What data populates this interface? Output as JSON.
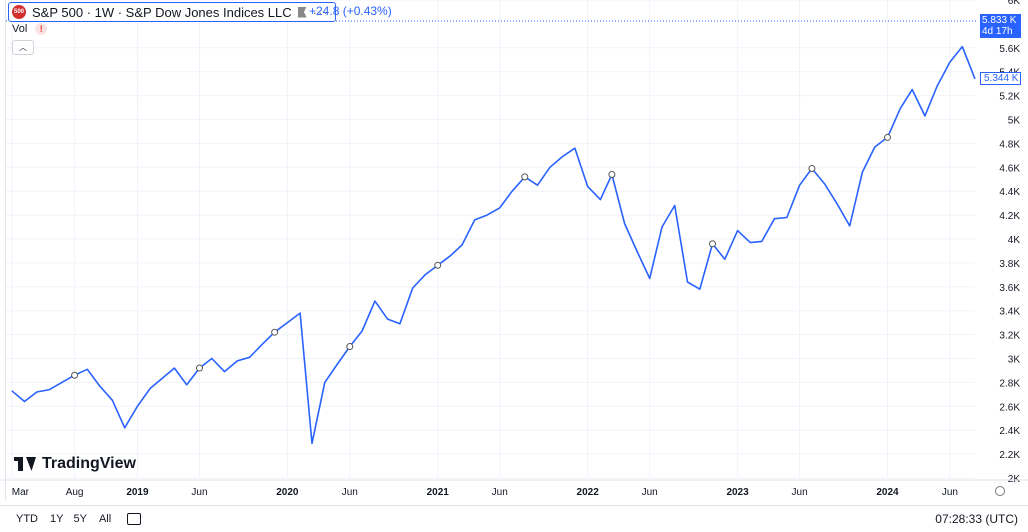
{
  "legend": {
    "logo_text": "500",
    "title": "S&P 500 · 1W · S&P Dow Jones Indices LLC",
    "change": "+24.8 (+0.43%)",
    "vol_label": "Vol",
    "warn_symbol": "!"
  },
  "price_tag": {
    "price": "5.833 K",
    "countdown": "4d 17h"
  },
  "last_tag": "5.344 K",
  "watermark": "TradingView",
  "ranges": [
    "YTD",
    "1Y",
    "5Y",
    "All"
  ],
  "clock": "07:28:33 (UTC)",
  "colors": {
    "line": "#2962ff",
    "grid": "#f0f3fa",
    "price_tag": "#2962ff"
  },
  "chart_data": {
    "type": "line",
    "x_labels": [
      "Mar",
      "Aug",
      "2019",
      "Jun",
      "2020",
      "Jun",
      "2021",
      "Jun",
      "2022",
      "Jun",
      "2023",
      "Jun",
      "2024",
      "Jun"
    ],
    "y_ticks": [
      "2K",
      "2.2K",
      "2.4K",
      "2.6K",
      "2.8K",
      "3K",
      "3.2K",
      "3.4K",
      "3.6K",
      "3.8K",
      "4K",
      "4.2K",
      "4.4K",
      "4.6K",
      "4.8K",
      "5K",
      "5.2K",
      "5.4K",
      "5.6K",
      "6K"
    ],
    "ylim": [
      2000,
      6000
    ],
    "grid": true,
    "series": [
      {
        "values": [
          [
            "2018-03",
            2730
          ],
          [
            "2018-04",
            2640
          ],
          [
            "2018-05",
            2720
          ],
          [
            "2018-06",
            2740
          ],
          [
            "2018-07",
            2800
          ],
          [
            "2018-08",
            2860
          ],
          [
            "2018-09",
            2910
          ],
          [
            "2018-10",
            2770
          ],
          [
            "2018-11",
            2650
          ],
          [
            "2018-12",
            2420
          ],
          [
            "2019-01",
            2600
          ],
          [
            "2019-02",
            2750
          ],
          [
            "2019-03",
            2830
          ],
          [
            "2019-04",
            2920
          ],
          [
            "2019-05",
            2780
          ],
          [
            "2019-06",
            2920
          ],
          [
            "2019-07",
            3000
          ],
          [
            "2019-08",
            2890
          ],
          [
            "2019-09",
            2980
          ],
          [
            "2019-10",
            3010
          ],
          [
            "2019-11",
            3120
          ],
          [
            "2019-12",
            3220
          ],
          [
            "2020-01",
            3300
          ],
          [
            "2020-02",
            3380
          ],
          [
            "2020-03",
            2290
          ],
          [
            "2020-04",
            2800
          ],
          [
            "2020-05",
            2950
          ],
          [
            "2020-06",
            3100
          ],
          [
            "2020-07",
            3230
          ],
          [
            "2020-08",
            3480
          ],
          [
            "2020-09",
            3330
          ],
          [
            "2020-10",
            3290
          ],
          [
            "2020-11",
            3590
          ],
          [
            "2020-12",
            3700
          ],
          [
            "2021-01",
            3780
          ],
          [
            "2021-02",
            3860
          ],
          [
            "2021-03",
            3950
          ],
          [
            "2021-04",
            4160
          ],
          [
            "2021-05",
            4200
          ],
          [
            "2021-06",
            4260
          ],
          [
            "2021-07",
            4400
          ],
          [
            "2021-08",
            4520
          ],
          [
            "2021-09",
            4450
          ],
          [
            "2021-10",
            4600
          ],
          [
            "2021-11",
            4690
          ],
          [
            "2021-12",
            4760
          ],
          [
            "2022-01",
            4440
          ],
          [
            "2022-02",
            4330
          ],
          [
            "2022-03",
            4540
          ],
          [
            "2022-04",
            4130
          ],
          [
            "2022-05",
            3900
          ],
          [
            "2022-06",
            3670
          ],
          [
            "2022-07",
            4100
          ],
          [
            "2022-08",
            4280
          ],
          [
            "2022-09",
            3640
          ],
          [
            "2022-10",
            3580
          ],
          [
            "2022-11",
            3960
          ],
          [
            "2022-12",
            3830
          ],
          [
            "2023-01",
            4070
          ],
          [
            "2023-02",
            3970
          ],
          [
            "2023-03",
            3980
          ],
          [
            "2023-04",
            4170
          ],
          [
            "2023-05",
            4180
          ],
          [
            "2023-06",
            4450
          ],
          [
            "2023-07",
            4590
          ],
          [
            "2023-08",
            4460
          ],
          [
            "2023-09",
            4290
          ],
          [
            "2023-10",
            4110
          ],
          [
            "2023-11",
            4560
          ],
          [
            "2023-12",
            4770
          ],
          [
            "2024-01",
            4850
          ],
          [
            "2024-02",
            5090
          ],
          [
            "2024-03",
            5250
          ],
          [
            "2024-04",
            5030
          ],
          [
            "2024-05",
            5280
          ],
          [
            "2024-06",
            5480
          ],
          [
            "2024-07",
            5610
          ],
          [
            "2024-08",
            5340
          ]
        ]
      }
    ]
  }
}
